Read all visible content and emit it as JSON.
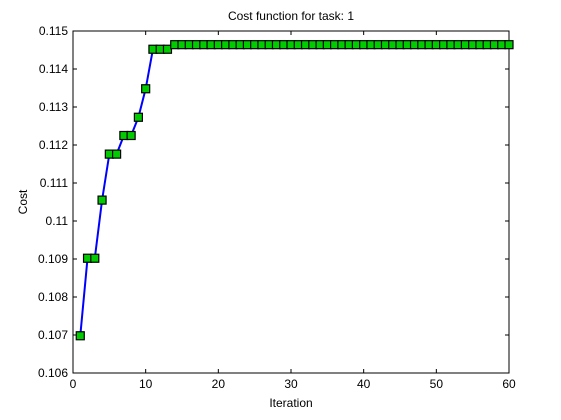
{
  "chart_data": {
    "type": "line",
    "title": "Cost function for task: 1",
    "xlabel": "Iteration",
    "ylabel": "Cost",
    "xlim": [
      0,
      60
    ],
    "ylim": [
      0.106,
      0.115
    ],
    "xticks": [
      "0",
      "10",
      "20",
      "30",
      "40",
      "50",
      "60"
    ],
    "yticks": [
      "0.106",
      "0.107",
      "0.108",
      "0.109",
      "0.11",
      "0.111",
      "0.112",
      "0.113",
      "0.114",
      "0.115"
    ],
    "grid": false,
    "line_color": "#0000ff",
    "marker_face_color": "#00cc00",
    "marker_edge_color": "#000000",
    "marker": "square",
    "series": [
      {
        "x": [
          1,
          2,
          3,
          4,
          5,
          6,
          7,
          8,
          9,
          10,
          11,
          12,
          13,
          14,
          15,
          16,
          17,
          18,
          19,
          20,
          21,
          22,
          23,
          24,
          25,
          26,
          27,
          28,
          29,
          30,
          31,
          32,
          33,
          34,
          35,
          36,
          37,
          38,
          39,
          40,
          41,
          42,
          43,
          44,
          45,
          46,
          47,
          48,
          49,
          50,
          51,
          52,
          53,
          54,
          55,
          56,
          57,
          58,
          59,
          60
        ],
        "values": [
          0.10698,
          0.10902,
          0.10902,
          0.11055,
          0.11176,
          0.11176,
          0.11225,
          0.11225,
          0.11273,
          0.11348,
          0.11452,
          0.11452,
          0.11452,
          0.11464,
          0.11464,
          0.11464,
          0.11464,
          0.11464,
          0.11464,
          0.11464,
          0.11464,
          0.11464,
          0.11464,
          0.11464,
          0.11464,
          0.11464,
          0.11464,
          0.11464,
          0.11464,
          0.11464,
          0.11464,
          0.11464,
          0.11464,
          0.11464,
          0.11464,
          0.11464,
          0.11464,
          0.11464,
          0.11464,
          0.11464,
          0.11464,
          0.11464,
          0.11464,
          0.11464,
          0.11464,
          0.11464,
          0.11464,
          0.11464,
          0.11464,
          0.11464,
          0.11464,
          0.11464,
          0.11464,
          0.11464,
          0.11464,
          0.11464,
          0.11464,
          0.11464,
          0.11464,
          0.11464
        ]
      }
    ]
  }
}
